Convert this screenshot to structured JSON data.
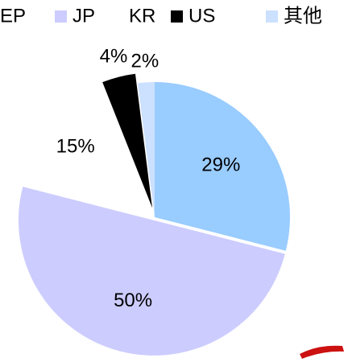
{
  "chart_data": {
    "type": "pie",
    "categories": [
      "EP",
      "JP",
      "KR",
      "US",
      "其他"
    ],
    "values": [
      29,
      50,
      15,
      4,
      2
    ],
    "value_labels": [
      "29%",
      "50%",
      "15%",
      "4%",
      "2%"
    ],
    "colors": [
      "#99ccff",
      "#ccccff",
      "#ffffff",
      "#000000",
      "#cce0ff"
    ],
    "legend": "top"
  }
}
